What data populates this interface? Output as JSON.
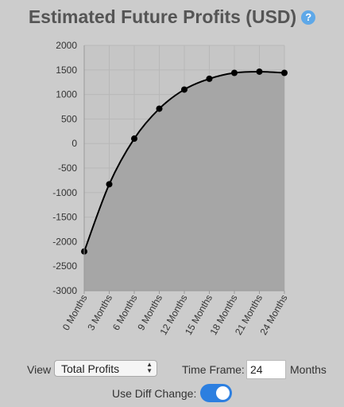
{
  "header": {
    "title": "Estimated Future Profits (USD)",
    "help_icon": "?"
  },
  "chart_data": {
    "type": "area",
    "title": "Estimated Future Profits (USD)",
    "xlabel": "",
    "ylabel": "",
    "categories": [
      "0 Months",
      "3 Months",
      "6 Months",
      "9 Months",
      "12 Months",
      "15 Months",
      "18 Months",
      "21 Months",
      "24 Months"
    ],
    "x": [
      0,
      3,
      6,
      9,
      12,
      15,
      18,
      21,
      24
    ],
    "values": [
      -2200,
      -830,
      100,
      710,
      1100,
      1320,
      1440,
      1465,
      1440
    ],
    "ylim": [
      -3000,
      2000
    ],
    "yticks": [
      2000,
      1500,
      1000,
      500,
      0,
      -500,
      -1000,
      -1500,
      -2000,
      -2500,
      -3000
    ],
    "grid": true,
    "line_color": "#000000",
    "fill_color": "#a6a6a6"
  },
  "controls": {
    "view_label": "View",
    "view_selected": "Total Profits",
    "timeframe_label": "Time Frame:",
    "timeframe_value": "24",
    "months_label": "Months",
    "diff_label": "Use Diff Change:",
    "diff_enabled": true
  }
}
